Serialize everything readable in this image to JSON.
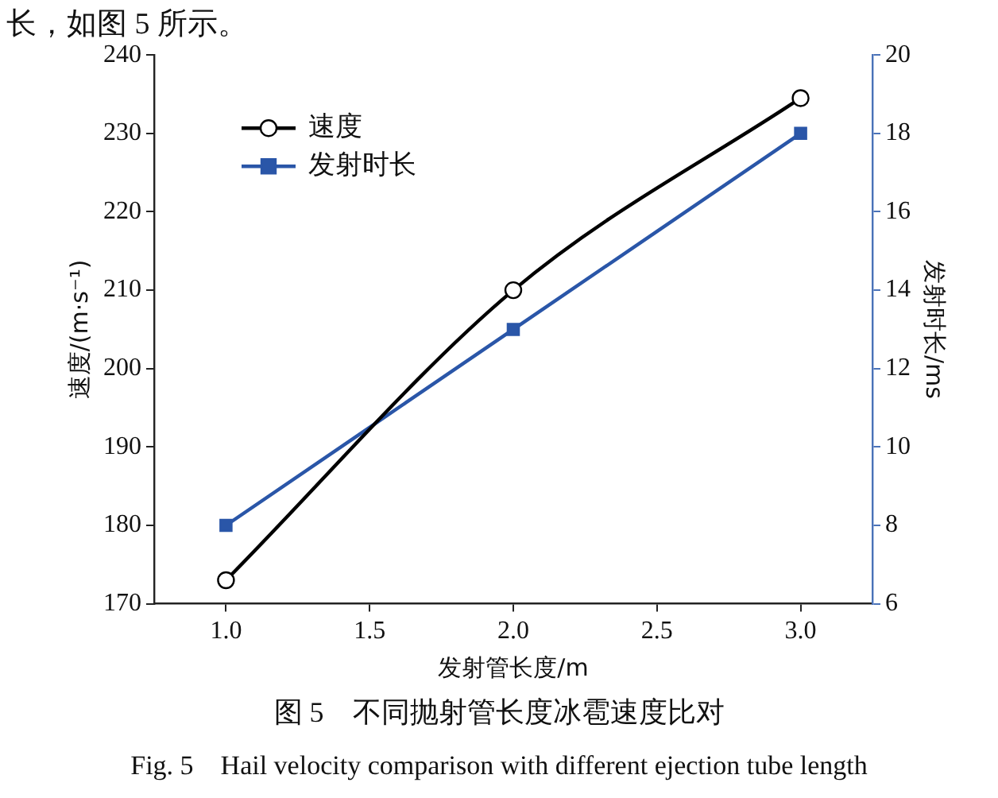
{
  "chart_data": {
    "type": "line",
    "xlabel": "发射管长度/m",
    "ylabel": "速度/(m·s⁻¹)",
    "y2label": "发射时长/ms",
    "x": [
      1.0,
      2.0,
      3.0
    ],
    "series": [
      {
        "name": "速度",
        "color": "#000000",
        "values": [
          173,
          210,
          234.5
        ],
        "marker": "circle"
      },
      {
        "name": "发射时长",
        "color": "#2a56a8",
        "values": [
          8,
          13,
          18
        ],
        "marker": "square",
        "axis": "y2"
      }
    ],
    "xlim": [
      0.75,
      3.25
    ],
    "xticks": [
      {
        "value": 1,
        "label": "1.0"
      },
      {
        "value": 1.5,
        "label": "1.5"
      },
      {
        "value": 2,
        "label": "2.0"
      },
      {
        "value": 2.5,
        "label": "2.5"
      },
      {
        "value": 3,
        "label": "3.0"
      }
    ],
    "ylim": [
      170,
      240
    ],
    "yticks": [
      170,
      180,
      190,
      200,
      210,
      220,
      230,
      240
    ],
    "y2lim": [
      6,
      20
    ],
    "y2ticks": [
      6,
      8,
      10,
      12,
      14,
      16,
      18,
      20
    ],
    "grid": false,
    "legend": "top left",
    "line_style": "solid",
    "annotations": [
      "长，如图 5 所示。",
      "图 5　不同抛射管长度冰雹速度比对",
      "Fig. 5　Hail velocity comparison with different ejection tube length"
    ]
  }
}
